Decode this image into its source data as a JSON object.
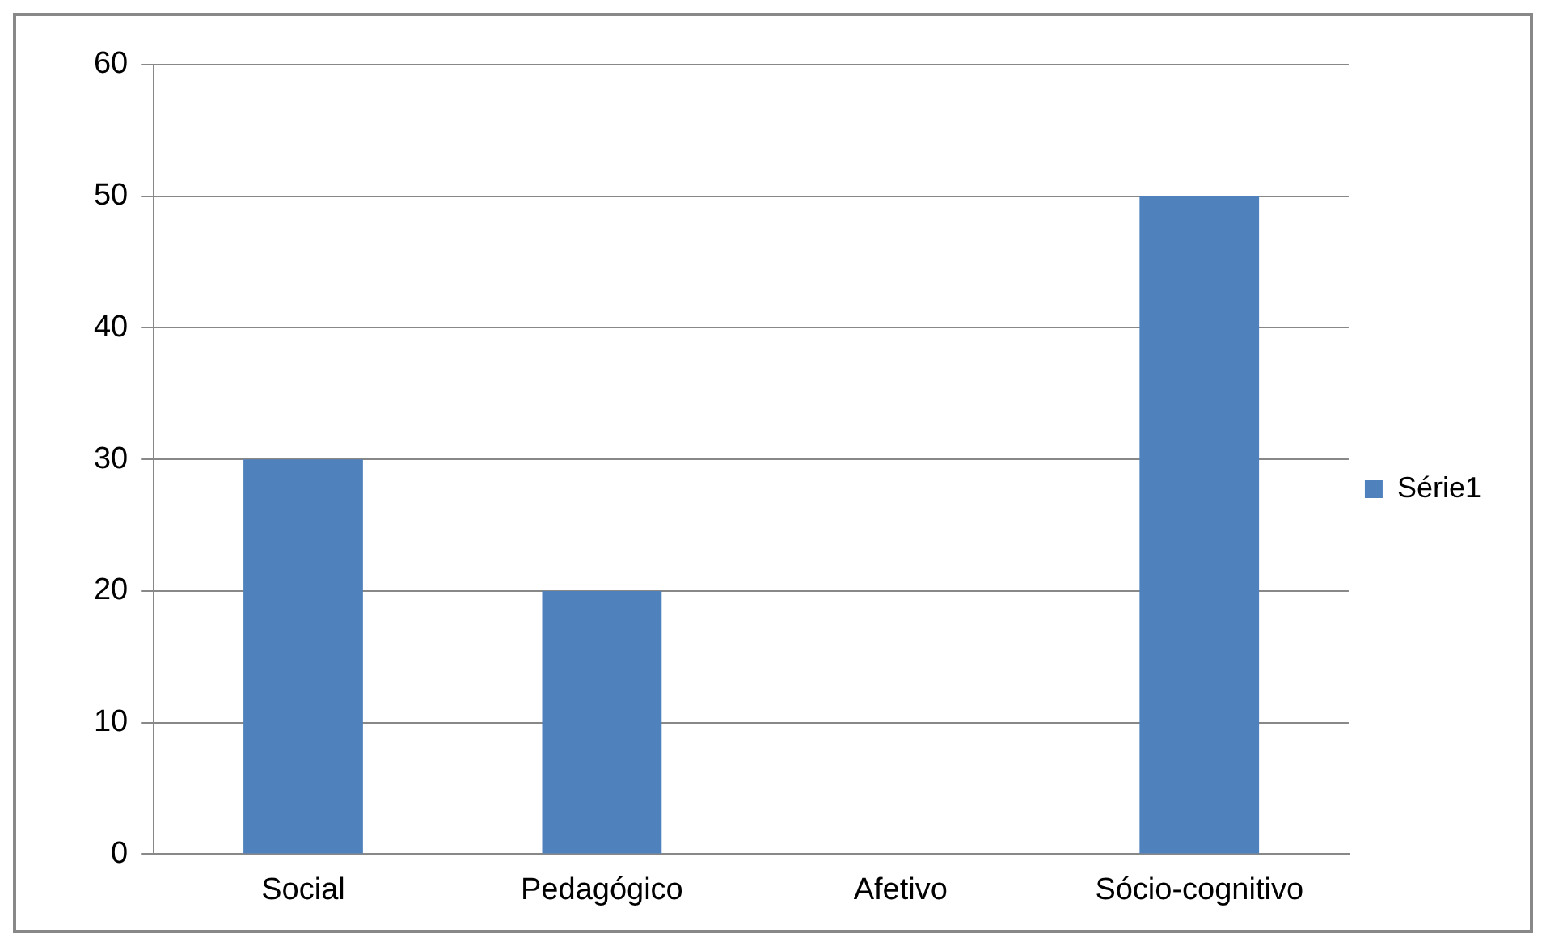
{
  "chart_data": {
    "type": "bar",
    "categories": [
      "Social",
      "Pedagógico",
      "Afetivo",
      "Sócio-cognitivo"
    ],
    "series": [
      {
        "name": "Série1",
        "color": "#4f81bd",
        "values": [
          30,
          20,
          0,
          50
        ]
      }
    ],
    "ylim": [
      0,
      60
    ],
    "yticks": [
      0,
      10,
      20,
      30,
      40,
      50,
      60
    ],
    "grid": "y",
    "legend": "right"
  }
}
